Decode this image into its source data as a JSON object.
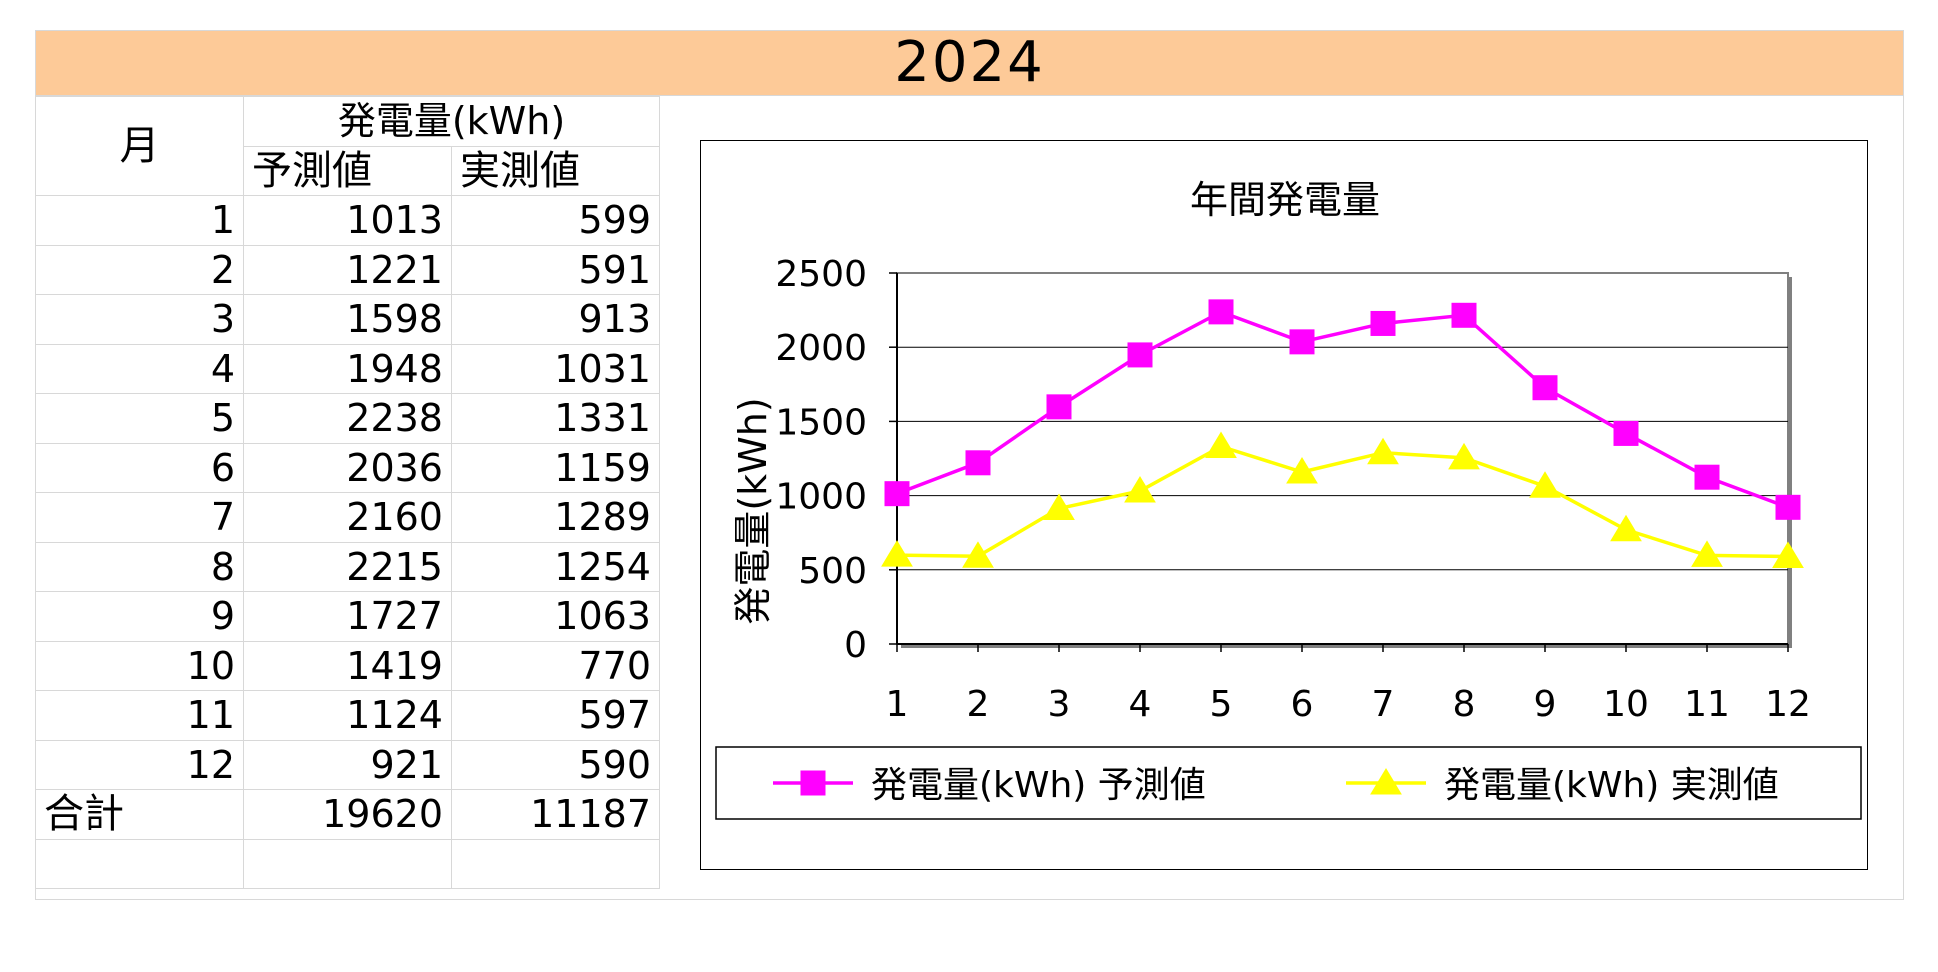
{
  "year_title": "2024",
  "table": {
    "header_month": "月",
    "header_group": "発電量(kWh)",
    "header_predicted": "予測値",
    "header_actual": "実測値",
    "rows": [
      {
        "month": "1",
        "predicted": "1013",
        "actual": "599"
      },
      {
        "month": "2",
        "predicted": "1221",
        "actual": "591"
      },
      {
        "month": "3",
        "predicted": "1598",
        "actual": "913"
      },
      {
        "month": "4",
        "predicted": "1948",
        "actual": "1031"
      },
      {
        "month": "5",
        "predicted": "2238",
        "actual": "1331"
      },
      {
        "month": "6",
        "predicted": "2036",
        "actual": "1159"
      },
      {
        "month": "7",
        "predicted": "2160",
        "actual": "1289"
      },
      {
        "month": "8",
        "predicted": "2215",
        "actual": "1254"
      },
      {
        "month": "9",
        "predicted": "1727",
        "actual": "1063"
      },
      {
        "month": "10",
        "predicted": "1419",
        "actual": "770"
      },
      {
        "month": "11",
        "predicted": "1124",
        "actual": "597"
      },
      {
        "month": "12",
        "predicted": "921",
        "actual": "590"
      }
    ],
    "total_label": "合計",
    "total_predicted": "19620",
    "total_actual": "11187"
  },
  "chart_data": {
    "type": "line",
    "title": "年間発電量",
    "xlabel": "",
    "ylabel": "発電量(kWh)",
    "categories": [
      "1",
      "2",
      "3",
      "4",
      "5",
      "6",
      "7",
      "8",
      "9",
      "10",
      "11",
      "12"
    ],
    "ylim": [
      0,
      2500
    ],
    "yticks": [
      0,
      500,
      1000,
      1500,
      2000,
      2500
    ],
    "grid": true,
    "legend_position": "bottom",
    "series": [
      {
        "name": "発電量(kWh) 予測値",
        "values": [
          1013,
          1221,
          1598,
          1948,
          2238,
          2036,
          2160,
          2215,
          1727,
          1419,
          1124,
          921
        ],
        "color": "#ff00ff",
        "marker": "square"
      },
      {
        "name": "発電量(kWh) 実測値",
        "values": [
          599,
          591,
          913,
          1031,
          1331,
          1159,
          1289,
          1254,
          1063,
          770,
          597,
          590
        ],
        "color": "#ffff00",
        "marker": "triangle"
      }
    ]
  }
}
